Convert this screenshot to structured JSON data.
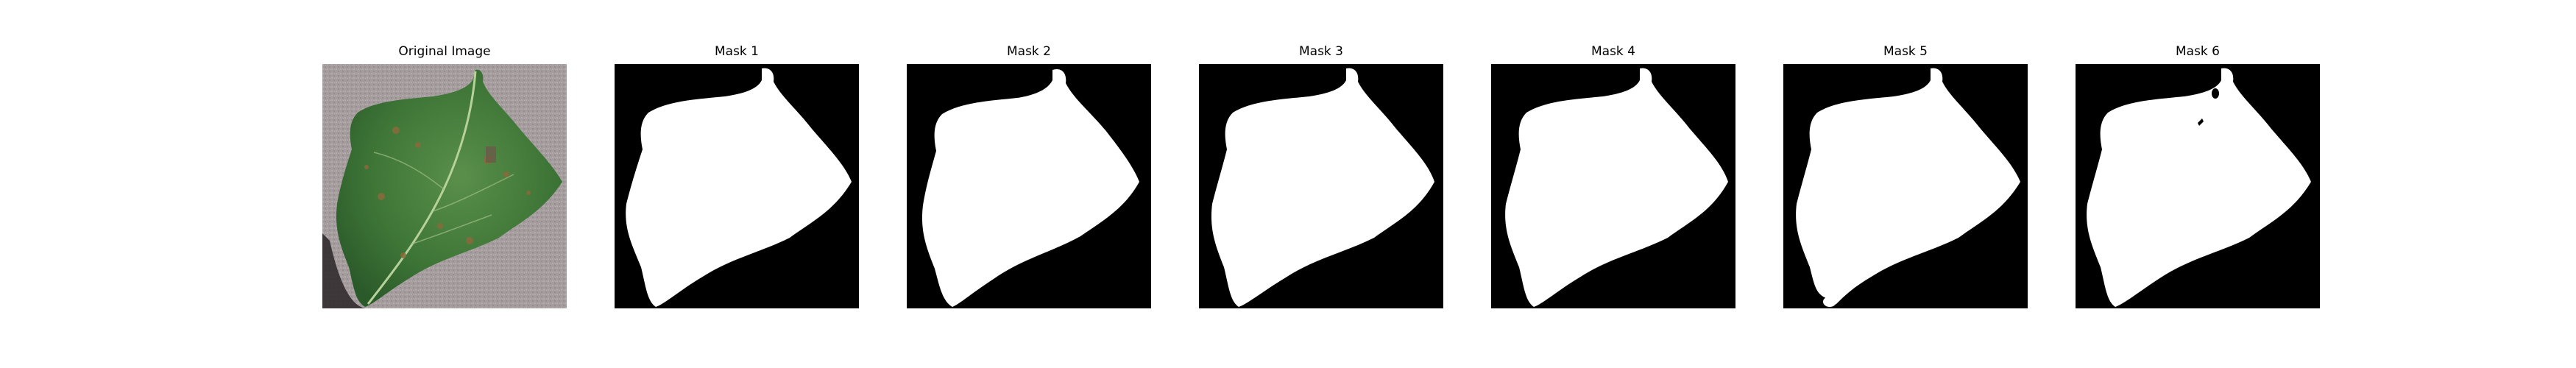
{
  "figure": {
    "panels": [
      {
        "title": "Original Image",
        "kind": "photo"
      },
      {
        "title": "Mask 1",
        "kind": "mask"
      },
      {
        "title": "Mask 2",
        "kind": "mask"
      },
      {
        "title": "Mask 3",
        "kind": "mask"
      },
      {
        "title": "Mask 4",
        "kind": "mask"
      },
      {
        "title": "Mask 5",
        "kind": "mask"
      },
      {
        "title": "Mask 6",
        "kind": "mask"
      }
    ]
  },
  "colors": {
    "mask_background": "#000000",
    "mask_foreground": "#ffffff",
    "leaf_green": "#3f7a3a",
    "background_gray": "#a9a0a2"
  }
}
